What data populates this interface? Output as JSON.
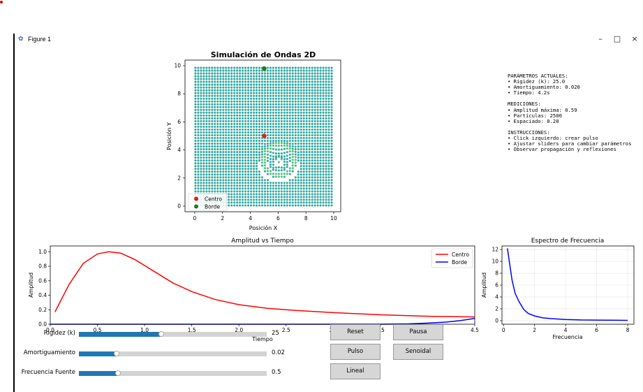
{
  "window": {
    "title": "Figure 1",
    "minimize": "–",
    "maximize": "□",
    "close": "×"
  },
  "sim": {
    "title": "Simulación de Ondas 2D",
    "xlabel": "Posición X",
    "ylabel": "Posición Y",
    "xticks": [
      "0",
      "2",
      "4",
      "6",
      "8",
      "10"
    ],
    "yticks": [
      "0",
      "2",
      "4",
      "6",
      "8",
      "10"
    ],
    "legend": [
      "Centro",
      "Borde"
    ],
    "colors": {
      "particles": "#33a9a0",
      "centro": "#e8191c",
      "borde": "#1e7a22"
    }
  },
  "info": {
    "lines": [
      "PARÁMETROS ACTUALES:",
      "• Rigidez (k): 25.0",
      "• Amortiguamiento: 0.020",
      "• Tiempo: 4.2s",
      "",
      "MEDICIONES:",
      "• Amplitud máxima: 0.59",
      "• Partículas: 2500",
      "• Espaciado: 0.20",
      "",
      "INSTRUCCIONES:",
      "• Click izquierdo: crear pulso",
      "• Ajustar sliders para cambiar parámetros",
      "• Observar propagación y reflexiones"
    ]
  },
  "chart_data": [
    {
      "type": "scatter",
      "title": "Simulación de Ondas 2D",
      "xlabel": "Posición X",
      "ylabel": "Posición Y",
      "xlim": [
        -0.7,
        10.5
      ],
      "ylim": [
        -0.4,
        10.4
      ],
      "series": [
        {
          "name": "Centro",
          "x": [
            5.0
          ],
          "y": [
            5.0
          ],
          "color": "#e8191c"
        },
        {
          "name": "Borde",
          "x": [
            5.0
          ],
          "y": [
            9.8
          ],
          "color": "#1e7a22"
        }
      ],
      "legend": "bottom-left"
    },
    {
      "type": "line",
      "title": "Amplitud vs Tiempo",
      "xlabel": "Tiempo",
      "ylabel": "Amplitud",
      "xlim": [
        0,
        4.5
      ],
      "ylim": [
        0,
        1.08
      ],
      "xticks": [
        "0.0",
        "0.5",
        "1.0",
        "1.5",
        "2.0",
        "2.5",
        "3.0",
        "3.5",
        "4.0",
        "4.5"
      ],
      "yticks": [
        "0.0",
        "0.2",
        "0.4",
        "0.6",
        "0.8",
        "1.0"
      ],
      "legend": "top-right",
      "series": [
        {
          "name": "Centro",
          "color": "#ff0000",
          "x": [
            0.05,
            0.2,
            0.35,
            0.5,
            0.62,
            0.75,
            0.9,
            1.1,
            1.3,
            1.5,
            1.75,
            2.0,
            2.3,
            2.6,
            3.0,
            3.5,
            4.0,
            4.5
          ],
          "y": [
            0.17,
            0.55,
            0.84,
            0.97,
            1.0,
            0.98,
            0.89,
            0.73,
            0.57,
            0.45,
            0.34,
            0.27,
            0.22,
            0.19,
            0.16,
            0.13,
            0.11,
            0.1
          ]
        },
        {
          "name": "Borde",
          "color": "#0000ff",
          "x": [
            0.0,
            1.0,
            2.0,
            3.0,
            3.5,
            3.8,
            4.0,
            4.2,
            4.35,
            4.5
          ],
          "y": [
            0.0,
            0.0,
            0.0,
            0.0,
            0.0,
            0.005,
            0.015,
            0.03,
            0.05,
            0.08
          ]
        }
      ]
    },
    {
      "type": "line",
      "title": "Espectro de Frecuencia",
      "xlabel": "Frecuencia",
      "ylabel": "Amplitud",
      "xlim": [
        -0.1,
        8.4
      ],
      "ylim": [
        -0.6,
        12.6
      ],
      "xticks": [
        "0",
        "2",
        "4",
        "6",
        "8"
      ],
      "yticks": [
        "0",
        "2",
        "4",
        "6",
        "8",
        "10",
        "12"
      ],
      "grid": true,
      "series": [
        {
          "name": "",
          "color": "#0000ff",
          "x": [
            0.25,
            0.4,
            0.55,
            0.75,
            1.0,
            1.3,
            1.6,
            2.0,
            2.5,
            3.0,
            4.0,
            5.0,
            6.0,
            7.0,
            8.0
          ],
          "y": [
            12.2,
            9.5,
            6.8,
            4.6,
            3.2,
            1.9,
            1.2,
            0.8,
            0.5,
            0.35,
            0.2,
            0.12,
            0.09,
            0.07,
            0.05
          ]
        }
      ]
    }
  ],
  "sliders": [
    {
      "label": "Rigidez (k)",
      "value": "25",
      "fraction": 0.44
    },
    {
      "label": "Amortiguamiento",
      "value": "0.02",
      "fraction": 0.2
    },
    {
      "label": "Frecuencia Fuente",
      "value": "0.5",
      "fraction": 0.21
    }
  ],
  "slider_colors": {
    "fill": "#1f77b4",
    "track": "#d3d3d3"
  },
  "buttons": {
    "reset": "Reset",
    "pausa": "Pausa",
    "pulso": "Pulso",
    "senoidal": "Senoidal",
    "lineal": "Lineal"
  }
}
